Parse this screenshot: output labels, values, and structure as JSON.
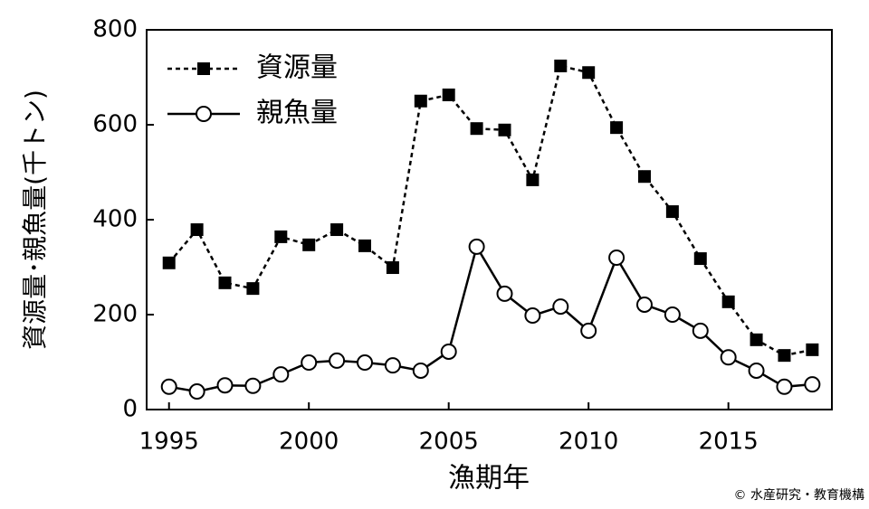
{
  "chart_data": {
    "type": "line",
    "x_label": "漁期年",
    "y_label": "資源量･親魚量(千トン)",
    "credit": "© 水産研究・教育機構",
    "x": [
      1995,
      1996,
      1997,
      1998,
      1999,
      2000,
      2001,
      2002,
      2003,
      2004,
      2005,
      2006,
      2007,
      2008,
      2009,
      2010,
      2011,
      2012,
      2013,
      2014,
      2015,
      2016,
      2017,
      2018
    ],
    "series": [
      {
        "name": "資源量",
        "color": "#000000",
        "marker": "square",
        "line_style": "dashed",
        "values": [
          309,
          379,
          267,
          255,
          364,
          347,
          379,
          345,
          299,
          650,
          663,
          592,
          589,
          484,
          724,
          710,
          594,
          491,
          417,
          318,
          227,
          147,
          114,
          126
        ]
      },
      {
        "name": "親魚量",
        "color": "#000000",
        "marker": "circle",
        "line_style": "solid",
        "values": [
          48,
          38,
          51,
          50,
          74,
          99,
          103,
          99,
          93,
          82,
          122,
          343,
          244,
          198,
          217,
          166,
          320,
          221,
          200,
          166,
          110,
          82,
          48,
          53
        ]
      }
    ],
    "xlim": [
      1994.2,
      2018.7
    ],
    "xticks": [
      1995,
      2000,
      2005,
      2010,
      2015
    ],
    "ylim": [
      0,
      800
    ],
    "yticks": [
      0,
      200,
      400,
      600,
      800
    ],
    "legend": "top-left",
    "grid": false
  }
}
